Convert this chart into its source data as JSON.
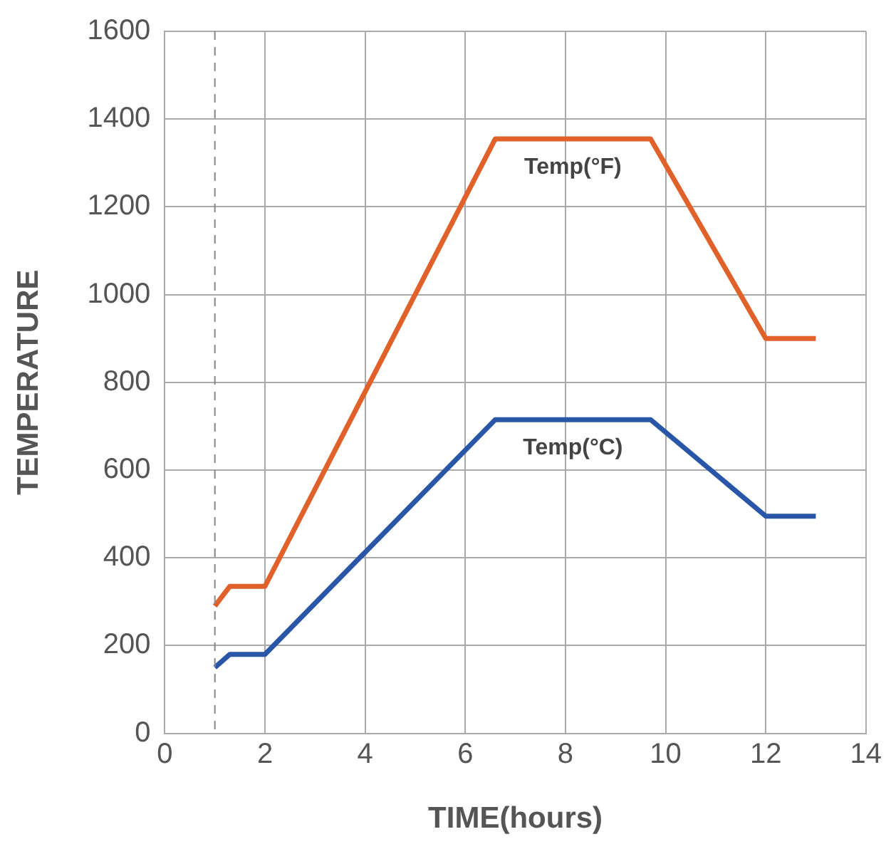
{
  "chart_data": {
    "type": "line",
    "xlabel": "TIME(hours)",
    "ylabel": "TEMPERATURE",
    "xlim": [
      0,
      14
    ],
    "xticks": [
      0,
      2,
      4,
      6,
      8,
      10,
      12,
      14
    ],
    "ylim": [
      0,
      1600
    ],
    "yticks": [
      0,
      200,
      400,
      600,
      800,
      1000,
      1200,
      1400,
      1600
    ],
    "grid": true,
    "legend": false,
    "marker": "none",
    "line_style": "solid",
    "series": [
      {
        "name": "Temp(°F)",
        "color": "#e0622a",
        "x": [
          1,
          1.3,
          2,
          6.6,
          9.7,
          12,
          13
        ],
        "values": [
          290,
          335,
          335,
          1355,
          1355,
          900,
          900
        ]
      },
      {
        "name": "Temp(°C)",
        "color": "#2a56a8",
        "x": [
          1,
          1.3,
          2,
          6.6,
          9.7,
          12,
          13
        ],
        "values": [
          150,
          180,
          180,
          715,
          715,
          495,
          495
        ]
      }
    ],
    "ref_lines": [
      {
        "axis": "x",
        "value": 1,
        "color": "#888888",
        "line_style": "dashed"
      }
    ]
  }
}
